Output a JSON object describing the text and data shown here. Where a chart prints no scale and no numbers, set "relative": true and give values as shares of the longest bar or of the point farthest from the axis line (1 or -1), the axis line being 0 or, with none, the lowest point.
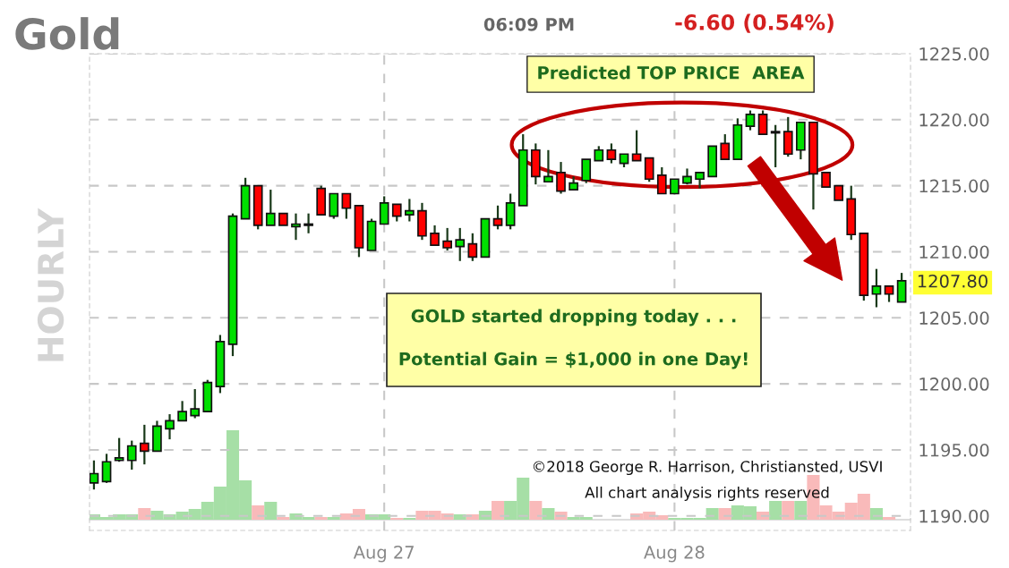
{
  "chart_data": [
    {
      "type": "candlestick",
      "title": "Gold",
      "categories": [
        null,
        null,
        null,
        null,
        null,
        null,
        null,
        null,
        null,
        null,
        null,
        null,
        null,
        null,
        null,
        null,
        null,
        null,
        null,
        null,
        null,
        null,
        null,
        "Aug 27",
        null,
        null,
        null,
        null,
        null,
        null,
        null,
        null,
        null,
        null,
        null,
        null,
        null,
        null,
        null,
        null,
        null,
        null,
        null,
        null,
        null,
        null,
        "Aug 28",
        null,
        null,
        null,
        null,
        null,
        null,
        null,
        null,
        null,
        null,
        null,
        null,
        null,
        null,
        null,
        null,
        null,
        null
      ],
      "ohlc": [
        [
          1192.5,
          1194.2,
          1192.0,
          1193.2
        ],
        [
          1192.6,
          1194.7,
          1192.5,
          1194.1
        ],
        [
          1194.2,
          1195.9,
          1194.1,
          1194.4
        ],
        [
          1194.2,
          1195.7,
          1193.5,
          1195.3
        ],
        [
          1195.5,
          1196.9,
          1193.9,
          1194.9
        ],
        [
          1194.9,
          1197.2,
          1194.9,
          1196.8
        ],
        [
          1196.6,
          1197.7,
          1195.8,
          1197.2
        ],
        [
          1197.2,
          1198.7,
          1197.2,
          1197.9
        ],
        [
          1197.6,
          1199.6,
          1197.4,
          1198.1
        ],
        [
          1197.9,
          1200.3,
          1197.9,
          1200.1
        ],
        [
          1199.8,
          1203.7,
          1199.3,
          1203.2
        ],
        [
          1203.0,
          1212.9,
          1202.1,
          1212.7
        ],
        [
          1212.5,
          1215.6,
          1212.5,
          1215.0
        ],
        [
          1215.0,
          1215.0,
          1211.7,
          1212.0
        ],
        [
          1212.0,
          1214.7,
          1212.0,
          1212.9
        ],
        [
          1212.9,
          1212.9,
          1212.0,
          1212.0
        ],
        [
          1211.9,
          1212.9,
          1210.9,
          1212.1
        ],
        [
          1212.0,
          1212.9,
          1211.4,
          1212.1
        ],
        [
          1214.8,
          1215.0,
          1212.8,
          1212.8
        ],
        [
          1212.7,
          1214.4,
          1212.5,
          1214.4
        ],
        [
          1214.4,
          1214.4,
          1212.5,
          1213.3
        ],
        [
          1213.5,
          1213.5,
          1209.6,
          1210.3
        ],
        [
          1210.1,
          1212.5,
          1210.1,
          1212.3
        ],
        [
          1212.1,
          1214.2,
          1212.1,
          1213.7
        ],
        [
          1213.6,
          1213.6,
          1212.3,
          1212.7
        ],
        [
          1212.8,
          1214.0,
          1212.3,
          1213.1
        ],
        [
          1213.1,
          1213.7,
          1210.9,
          1211.2
        ],
        [
          1211.4,
          1212.0,
          1210.5,
          1210.5
        ],
        [
          1210.8,
          1211.8,
          1210.1,
          1210.3
        ],
        [
          1210.4,
          1211.8,
          1209.3,
          1210.9
        ],
        [
          1210.6,
          1211.4,
          1209.3,
          1209.6
        ],
        [
          1209.6,
          1212.5,
          1209.6,
          1212.5
        ],
        [
          1212.5,
          1213.5,
          1211.7,
          1212.0
        ],
        [
          1212.0,
          1214.4,
          1211.7,
          1213.7
        ],
        [
          1213.5,
          1218.9,
          1213.5,
          1217.7
        ],
        [
          1217.7,
          1218.2,
          1215.1,
          1215.7
        ],
        [
          1215.3,
          1217.7,
          1215.3,
          1215.7
        ],
        [
          1216.0,
          1216.8,
          1214.4,
          1214.6
        ],
        [
          1214.7,
          1215.7,
          1214.7,
          1215.2
        ],
        [
          1215.4,
          1217.0,
          1215.2,
          1217.0
        ],
        [
          1216.9,
          1218.0,
          1216.9,
          1217.7
        ],
        [
          1217.7,
          1218.2,
          1216.7,
          1217.0
        ],
        [
          1216.7,
          1217.4,
          1216.4,
          1217.4
        ],
        [
          1217.4,
          1219.2,
          1216.9,
          1216.9
        ],
        [
          1217.1,
          1217.1,
          1215.3,
          1215.5
        ],
        [
          1215.8,
          1216.4,
          1214.4,
          1214.4
        ],
        [
          1214.4,
          1215.5,
          1214.4,
          1215.5
        ],
        [
          1215.2,
          1216.3,
          1215.1,
          1215.7
        ],
        [
          1215.5,
          1216.0,
          1214.8,
          1216.0
        ],
        [
          1215.7,
          1218.0,
          1215.7,
          1218.0
        ],
        [
          1218.2,
          1218.9,
          1217.0,
          1217.0
        ],
        [
          1217.0,
          1220.1,
          1217.0,
          1219.6
        ],
        [
          1219.5,
          1220.7,
          1219.2,
          1220.4
        ],
        [
          1220.4,
          1220.7,
          1218.9,
          1218.9
        ],
        [
          1219.0,
          1219.6,
          1216.4,
          1219.1
        ],
        [
          1219.1,
          1220.2,
          1217.2,
          1217.4
        ],
        [
          1217.7,
          1219.8,
          1217.0,
          1219.8
        ],
        [
          1219.8,
          1219.8,
          1213.2,
          1215.9
        ],
        [
          1216.0,
          1216.0,
          1214.9,
          1214.9
        ],
        [
          1215.0,
          1215.0,
          1213.9,
          1213.9
        ],
        [
          1214.0,
          1215.0,
          1210.9,
          1211.3
        ],
        [
          1211.4,
          1211.4,
          1206.3,
          1206.7
        ],
        [
          1206.8,
          1208.7,
          1205.8,
          1207.4
        ],
        [
          1207.4,
          1207.4,
          1206.2,
          1206.8
        ],
        [
          1206.2,
          1208.4,
          1206.2,
          1207.8
        ]
      ],
      "colors": [
        "#00e000",
        "#00e000",
        "#00e000",
        "#00e000",
        "#ff0000",
        "#00e000",
        "#00e000",
        "#00e000",
        "#00e000",
        "#00e000",
        "#00e000",
        "#00e000",
        "#00e000",
        "#ff0000",
        "#00e000",
        "#ff0000",
        "#00e000",
        "#00e000",
        "#ff0000",
        "#00e000",
        "#ff0000",
        "#ff0000",
        "#00e000",
        "#00e000",
        "#ff0000",
        "#00e000",
        "#ff0000",
        "#ff0000",
        "#ff0000",
        "#00e000",
        "#ff0000",
        "#00e000",
        "#ff0000",
        "#00e000",
        "#00e000",
        "#ff0000",
        "#00e000",
        "#ff0000",
        "#00e000",
        "#00e000",
        "#00e000",
        "#ff0000",
        "#00e000",
        "#ff0000",
        "#ff0000",
        "#ff0000",
        "#00e000",
        "#00e000",
        "#00e000",
        "#00e000",
        "#ff0000",
        "#00e000",
        "#00e000",
        "#ff0000",
        "#00e000",
        "#ff0000",
        "#00e000",
        "#ff0000",
        "#ff0000",
        "#ff0000",
        "#ff0000",
        "#ff0000",
        "#00e000",
        "#ff0000",
        "#00e000"
      ],
      "ylim": [
        1188.9,
        1225
      ],
      "yticks": [
        {
          "value": 1190,
          "label": "1190.00"
        },
        {
          "value": 1195,
          "label": "1195.00"
        },
        {
          "value": 1200,
          "label": "1200.00"
        },
        {
          "value": 1205,
          "label": "1205.00"
        },
        {
          "value": 1210,
          "label": "1210.00"
        },
        {
          "value": 1215,
          "label": "1215.00"
        },
        {
          "value": 1220,
          "label": "1220.00"
        },
        {
          "value": 1225,
          "label": "1225.00"
        }
      ],
      "grid": true,
      "annotations": [
        "06:09 PM",
        "-6.60 (0.54%)",
        "HOURLY",
        "Predicted TOP PRICE  AREA",
        "GOLD started dropping today . . .",
        "Potential Gain = $1,000 in one Day!",
        "©2018 George R. Harrison, Christiansted, USVI",
        "All chart analysis rights reserved",
        "1207.80"
      ]
    },
    {
      "type": "bar",
      "relative": true,
      "values": [
        0.06,
        0.03,
        0.06,
        0.06,
        0.13,
        0.1,
        0.06,
        0.09,
        0.12,
        0.2,
        0.37,
        1,
        0.44,
        0.16,
        0.2,
        0.03,
        0.07,
        0.03,
        0.03,
        0.03,
        0.07,
        0.12,
        0.06,
        0.06,
        0.02,
        0.02,
        0.1,
        0.1,
        0.07,
        0.06,
        0.06,
        0.1,
        0.21,
        0.21,
        0.47,
        0.21,
        0.13,
        0.09,
        0.03,
        0.03,
        null,
        null,
        null,
        0.07,
        0.09,
        0.05,
        0.02,
        0.02,
        0.02,
        0.13,
        0.13,
        0.16,
        0.15,
        0.09,
        0.21,
        0.21,
        0.21,
        0.5,
        0.16,
        0.09,
        0.19,
        0.29,
        0.13,
        0.03,
        null
      ],
      "colors": [
        "#a6dfa6",
        "#a6dfa6",
        "#a6dfa6",
        "#a6dfa6",
        "#f9baba",
        "#a6dfa6",
        "#a6dfa6",
        "#a6dfa6",
        "#a6dfa6",
        "#a6dfa6",
        "#a6dfa6",
        "#a6dfa6",
        "#a6dfa6",
        "#f9baba",
        "#a6dfa6",
        "#f9baba",
        "#a6dfa6",
        "#a6dfa6",
        "#f9baba",
        "#a6dfa6",
        "#f9baba",
        "#f9baba",
        "#a6dfa6",
        "#a6dfa6",
        "#f9baba",
        "#a6dfa6",
        "#f9baba",
        "#f9baba",
        "#f9baba",
        "#a6dfa6",
        "#f9baba",
        "#a6dfa6",
        "#f9baba",
        "#a6dfa6",
        "#a6dfa6",
        "#f9baba",
        "#a6dfa6",
        "#f9baba",
        "#a6dfa6",
        "#a6dfa6",
        "#a6dfa6",
        "#f9baba",
        "#a6dfa6",
        "#f9baba",
        "#f9baba",
        "#f9baba",
        "#a6dfa6",
        "#a6dfa6",
        "#a6dfa6",
        "#a6dfa6",
        "#f9baba",
        "#a6dfa6",
        "#a6dfa6",
        "#f9baba",
        "#a6dfa6",
        "#f9baba",
        "#a6dfa6",
        "#f9baba",
        "#f9baba",
        "#f9baba",
        "#f9baba",
        "#f9baba",
        "#a6dfa6",
        "#f9baba",
        "#a6dfa6"
      ]
    }
  ]
}
